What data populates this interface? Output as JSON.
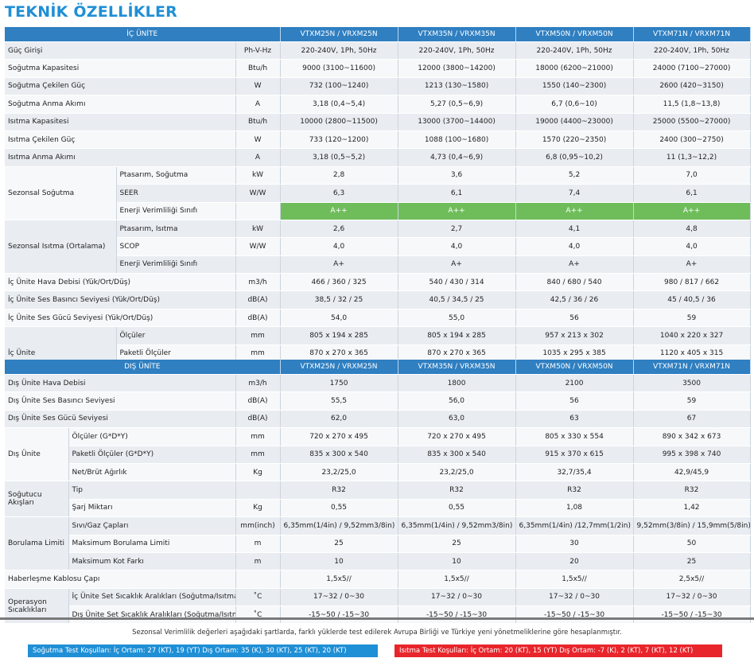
{
  "title": "TEKNİK ÖZELLİKLER",
  "indoor": {
    "header": "İÇ ÜNİTE",
    "models": [
      "VTXM25N / VRXM25N",
      "VTXM35N / VRXM35N",
      "VTXM50N / VRXM50N",
      "VTXM71N / VRXM71N"
    ],
    "rows": [
      {
        "label": "Güç Girişi",
        "unit": "Ph-V-Hz",
        "v": [
          "220-240V, 1Ph, 50Hz",
          "220-240V, 1Ph, 50Hz",
          "220-240V, 1Ph, 50Hz",
          "220-240V, 1Ph, 50Hz"
        ]
      },
      {
        "label": "Soğutma Kapasitesi",
        "unit": "Btu/h",
        "v": [
          "9000 (3100~11600)",
          "12000 (3800~14200)",
          "18000 (6200~21000)",
          "24000 (7100~27000)"
        ]
      },
      {
        "label": "Soğutma Çekilen Güç",
        "unit": "W",
        "v": [
          "732 (100~1240)",
          "1213 (130~1580)",
          "1550 (140~2300)",
          "2600 (420~3150)"
        ]
      },
      {
        "label": "Soğutma Anma Akımı",
        "unit": "A",
        "v": [
          "3,18 (0,4~5,4)",
          "5,27 (0,5~6,9)",
          "6,7 (0,6~10)",
          "11,5 (1,8~13,8)"
        ]
      },
      {
        "label": "Isıtma Kapasitesi",
        "unit": "Btu/h",
        "v": [
          "10000 (2800~11500)",
          "13000 (3700~14400)",
          "19000 (4400~23000)",
          "25000 (5500~27000)"
        ]
      },
      {
        "label": "Isıtma Çekilen Güç",
        "unit": "W",
        "v": [
          "733 (120~1200)",
          "1088 (100~1680)",
          "1570 (220~2350)",
          "2400 (300~2750)"
        ]
      },
      {
        "label": "Isıtma Anma Akımı",
        "unit": "A",
        "v": [
          "3,18 (0,5~5,2)",
          "4,73 (0,4~6,9)",
          "6,8 (0,95~10,2)",
          "11 (1,3~12,2)"
        ]
      }
    ],
    "seasonal_cooling": {
      "label": "Sezonsal Soğutma",
      "sub": [
        {
          "label": "Ptasarım, Soğutma",
          "unit": "kW",
          "v": [
            "2,8",
            "3,6",
            "5,2",
            "7,0"
          ]
        },
        {
          "label": "SEER",
          "unit": "W/W",
          "v": [
            "6,3",
            "6,1",
            "7,4",
            "6,1"
          ]
        },
        {
          "label": "Enerji Verimliliği Sınıfı",
          "unit": "",
          "v": [
            "A++",
            "A++",
            "A++",
            "A++"
          ]
        }
      ]
    },
    "seasonal_heating": {
      "label": "Sezonsal Isıtma (Ortalama)",
      "sub": [
        {
          "label": "Ptasarım, Isıtma",
          "unit": "kW",
          "v": [
            "2,6",
            "2,7",
            "4,1",
            "4,8"
          ]
        },
        {
          "label": "SCOP",
          "unit": "W/W",
          "v": [
            "4,0",
            "4,0",
            "4,0",
            "4,0"
          ]
        },
        {
          "label": "Enerji Verimliliği Sınıfı",
          "unit": "",
          "v": [
            "A+",
            "A+",
            "A+",
            "A+"
          ]
        }
      ]
    },
    "rows2": [
      {
        "label": "İç Ünite Hava Debisi (Yük/Ort/Düş)",
        "unit": "m3/h",
        "v": [
          "466 / 360 / 325",
          "540 / 430 / 314",
          "840 / 680 / 540",
          "980 / 817 / 662"
        ]
      },
      {
        "label": "İç Ünite Ses Basıncı Seviyesi (Yük/Ort/Düş)",
        "unit": "dB(A)",
        "v": [
          "38,5 / 32 / 25",
          "40,5 / 34,5 / 25",
          "42,5 / 36 / 26",
          "45 / 40,5 / 36"
        ]
      },
      {
        "label": "İç Ünite Ses Gücü Seviyesi (Yük/Ort/Düş)",
        "unit": "dB(A)",
        "v": [
          "54,0",
          "55,0",
          "56",
          "59"
        ]
      }
    ],
    "unit_group": {
      "label": "İç Ünite",
      "sub": [
        {
          "label": "Ölçüler",
          "unit": "mm",
          "v": [
            "805 x 194 x 285",
            "805 x 194 x 285",
            "957 x 213 x 302",
            "1040 x 220 x 327"
          ]
        },
        {
          "label": "Paketli Ölçüler",
          "unit": "mm",
          "v": [
            "870 x 270 x 365",
            "870 x 270 x 365",
            "1035 x 295 x 385",
            "1120 x 405 x 315"
          ]
        },
        {
          "label": "Net/Brüt Ağırlık",
          "unit": "Kg",
          "v": [
            "7,6 / 9,7",
            "7,6 / 9,8",
            "10 / 13",
            "12,3 / 15,8"
          ]
        }
      ]
    }
  },
  "outdoor": {
    "header": "DIŞ ÜNİTE",
    "models": [
      "VTXM25N / VRXM25N",
      "VTXM35N / VRXM35N",
      "VTXM50N / VRXM50N",
      "VTXM71N / VRXM71N"
    ],
    "rows": [
      {
        "label": "Dış Ünite Hava Debisi",
        "unit": "m3/h",
        "v": [
          "1750",
          "1800",
          "2100",
          "3500"
        ]
      },
      {
        "label": "Dış Ünite Ses Basıncı Seviyesi",
        "unit": "dB(A)",
        "v": [
          "55,5",
          "56,0",
          "56",
          "59"
        ]
      },
      {
        "label": "Dış Ünite Ses Gücü Seviyesi",
        "unit": "dB(A)",
        "v": [
          "62,0",
          "63,0",
          "63",
          "67"
        ]
      }
    ],
    "unit_group": {
      "label": "Dış Ünite",
      "sub": [
        {
          "label": "Ölçüler (G*D*Y)",
          "unit": "mm",
          "v": [
            "720 x 270 x 495",
            "720 x 270 x 495",
            "805 x 330 x 554",
            "890 x 342 x 673"
          ]
        },
        {
          "label": "Paketli Ölçüler (G*D*Y)",
          "unit": "mm",
          "v": [
            "835 x 300 x 540",
            "835 x 300 x 540",
            "915 x 370 x 615",
            "995 x 398 x 740"
          ]
        },
        {
          "label": "Net/Brüt Ağırlık",
          "unit": "Kg",
          "v": [
            "23,2/25,0",
            "23,2/25,0",
            "32,7/35,4",
            "42,9/45,9"
          ]
        }
      ]
    },
    "refrigerant": {
      "label": "Soğutucu Akışları",
      "sub": [
        {
          "label": "Tip",
          "unit": "",
          "v": [
            "R32",
            "R32",
            "R32",
            "R32"
          ]
        },
        {
          "label": "Şarj Miktarı",
          "unit": "Kg",
          "v": [
            "0,55",
            "0,55",
            "1,08",
            "1,42"
          ]
        }
      ]
    },
    "piping": {
      "label": "Borulama Limiti",
      "sub": [
        {
          "label": "Sıvı/Gaz Çapları",
          "unit": "mm(inch)",
          "v": [
            "6,35mm(1/4in) / 9,52mm3/8in)",
            "6,35mm(1/4in) / 9,52mm3/8in)",
            "6,35mm(1/4in) /12,7mm(1/2in)",
            "9,52mm(3/8in) / 15,9mm(5/8in)"
          ]
        },
        {
          "label": "Maksimum Borulama Limiti",
          "unit": "m",
          "v": [
            "25",
            "25",
            "30",
            "50"
          ]
        },
        {
          "label": "Maksimum Kot Farkı",
          "unit": "m",
          "v": [
            "10",
            "10",
            "20",
            "25"
          ]
        }
      ]
    },
    "cable": {
      "label": "Haberleşme Kablosu Çapı",
      "unit": "",
      "v": [
        "1,5x5//",
        "1,5x5//",
        "1,5x5//",
        "2,5x5//"
      ]
    },
    "operation": {
      "label": "Operasyon Sıcaklıkları",
      "sub": [
        {
          "label": "İç Ünite Set Sıcaklık Aralıkları (Soğutma/Isıtma)",
          "unit": "˚C",
          "v": [
            "17~32 / 0~30",
            "17~32 / 0~30",
            "17~32 / 0~30",
            "17~32 / 0~30"
          ]
        },
        {
          "label": "Dış Ünite Set Sıcaklık Aralıkları (Soğutma/Isıtma)",
          "unit": "˚C",
          "v": [
            "-15~50 / -15~30",
            "-15~50 / -15~30",
            "-15~50 / -15~30",
            "-15~50 / -15~30"
          ]
        }
      ]
    }
  },
  "footer": {
    "note": "Sezonsal Verimlilik değerleri aşağıdaki şartlarda, farklı yüklerde test edilerek Avrupa Birliği ve Türkiye yeni yönetmeliklerine göre hesaplanmıştır.",
    "cooling_conditions": "Soğutma Test Koşulları: İç Ortam: 27 (KT), 19 (YT)   Dış Ortam: 35 (K), 30 (KT), 25 (KT), 20 (KT)",
    "heating_conditions": "Isıtma Test Koşulları: İç Ortam: 20 (KT), 15 (YT)   Dış Ortam: -7 (K), 2 (KT), 7 (KT), 12 (KT)"
  },
  "colors": {
    "accent": "#2f7fc1",
    "title": "#1f8fd6",
    "green": "#6ebd5a",
    "red": "#e8252b"
  }
}
